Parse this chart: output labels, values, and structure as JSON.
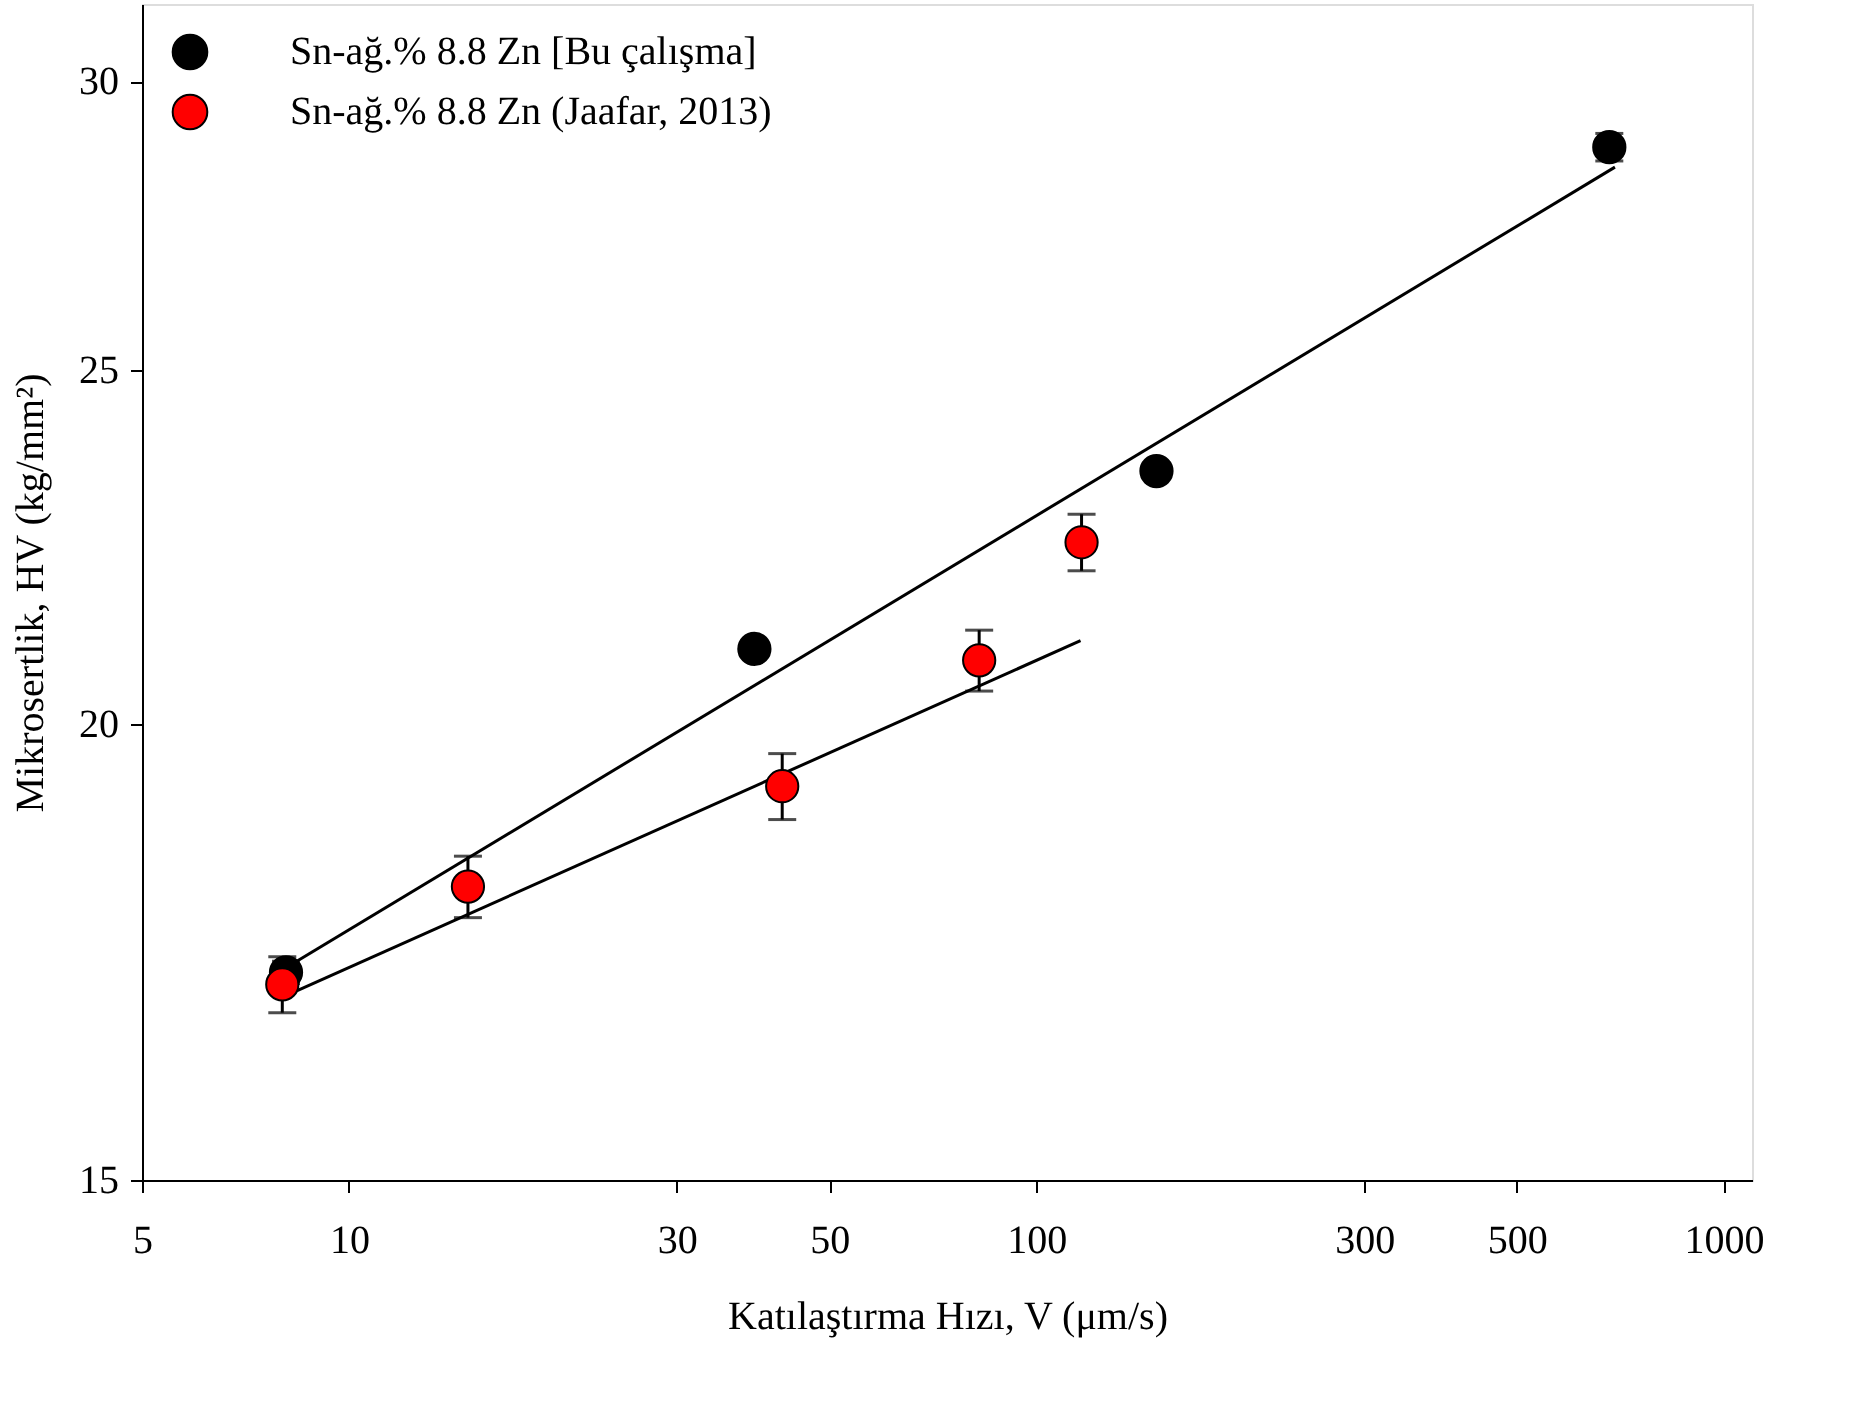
{
  "chart_data": {
    "type": "scatter",
    "xlabel": "Katılaştırma Hızı, V (μm/s)",
    "ylabel": "Mikrosertlik, HV (kg/mm²)",
    "log": "xy",
    "xlim": [
      5,
      1100
    ],
    "xticks": [
      5,
      10,
      30,
      50,
      100,
      300,
      500,
      1000
    ],
    "ylim": [
      15,
      31.5
    ],
    "yticks": [
      15,
      20,
      25,
      30
    ],
    "grid": false,
    "legend": "top left",
    "series": [
      {
        "name": "Sn-ağ.% 8.8 Zn  [Bu çalışma]",
        "color": "#000000",
        "marker": "circle",
        "x": [
          8.1,
          38.9,
          149.6,
          682
        ],
        "values": [
          17.1,
          20.97,
          23.46,
          28.78
        ],
        "errors": [
          0.12,
          null,
          null,
          0.25
        ]
      },
      {
        "name": "Sn-ağ.% 8.8 Zn  (Jaafar, 2013)",
        "color": "#ff0000",
        "marker": "circle",
        "x": [
          8.0,
          14.9,
          42.7,
          82.6,
          116.4
        ],
        "values": [
          16.97,
          18.05,
          19.23,
          20.82,
          22.43
        ],
        "errors": [
          0.3,
          0.35,
          0.4,
          0.4,
          0.4
        ]
      },
      {
        "type": "line",
        "marker": "none",
        "color": "#000000",
        "x": [
          8.1,
          695
        ],
        "values": [
          17.15,
          28.42
        ]
      },
      {
        "type": "line",
        "marker": "none",
        "color": "#000000",
        "x": [
          8.1,
          116
        ],
        "values": [
          16.85,
          21.08
        ]
      }
    ]
  }
}
